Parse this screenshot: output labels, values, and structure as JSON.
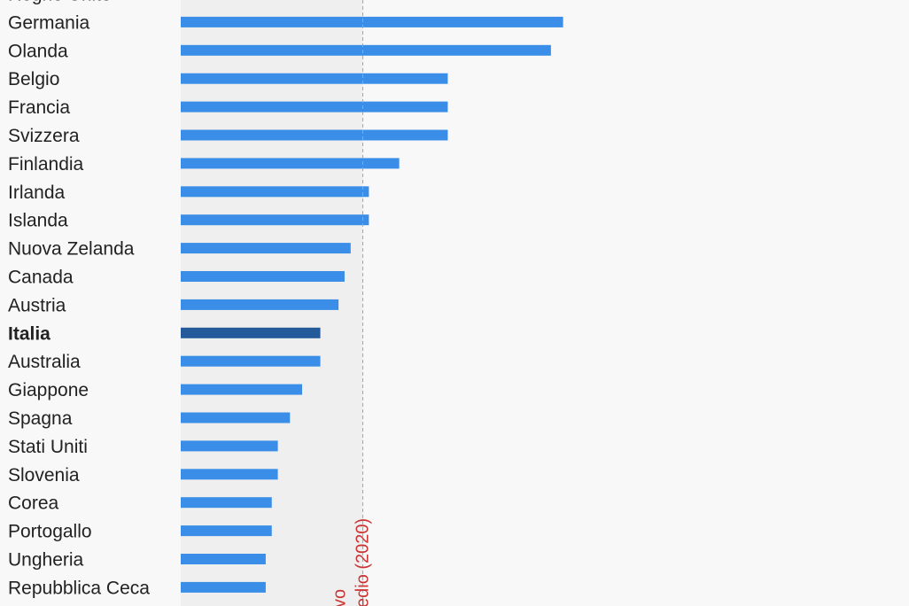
{
  "colors": {
    "background": "#f8f8f8",
    "band": "#efefef",
    "bar": "#3a8ee8",
    "bar_highlight": "#255a9a",
    "reference_line": "#e88888",
    "annotation_text": "#cc3333",
    "label_text": "#222222"
  },
  "chart_data": {
    "type": "bar",
    "orientation": "horizontal",
    "categories": [
      "Regno Unito",
      "Germania",
      "Olanda",
      "Belgio",
      "Francia",
      "Svizzera",
      "Finlandia",
      "Irlanda",
      "Islanda",
      "Nuova Zelanda",
      "Canada",
      "Austria",
      "Italia",
      "Australia",
      "Giappone",
      "Spagna",
      "Stati Uniti",
      "Slovenia",
      "Corea",
      "Portogallo",
      "Ungheria",
      "Repubblica Ceca"
    ],
    "values": [
      null,
      63,
      61,
      44,
      44,
      44,
      36,
      31,
      31,
      28,
      27,
      26,
      23,
      23,
      20,
      18,
      16,
      16,
      15,
      15,
      14,
      14
    ],
    "highlight": "Italia",
    "xlim": [
      0,
      120
    ],
    "reference_line": {
      "value": 30,
      "labels": [
        "vo",
        "edio (2020)"
      ]
    },
    "title": "",
    "xlabel": "",
    "ylabel": ""
  }
}
